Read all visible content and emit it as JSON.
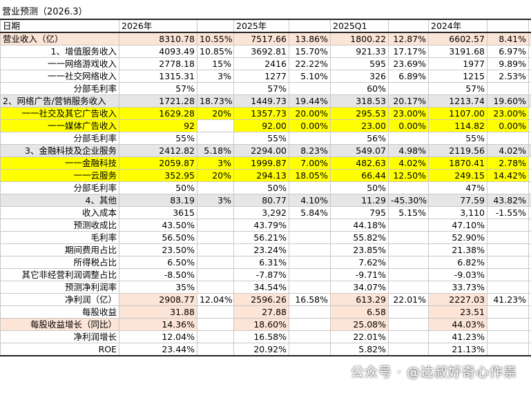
{
  "header": {
    "title": "营业预测（2026.3）"
  },
  "table": {
    "header": [
      "日期",
      "2026年",
      null,
      "2025年",
      null,
      "2025Q1",
      null,
      "2024年",
      null
    ],
    "rows": [
      [
        "营业收入（亿）",
        "8310.78",
        "10.55%",
        "7517.66",
        "13.86%",
        "1800.22",
        "12.87%",
        "6602.57",
        "8.41%"
      ],
      [
        "1、增值服务收入",
        "4093.49",
        "10.85%",
        "3692.81",
        "15.70%",
        "921.33",
        "17.17%",
        "3191.68",
        "6.97%"
      ],
      [
        "一一网络游戏收入",
        "2778.18",
        "15%",
        "2416",
        "22.22%",
        "595",
        "23.69%",
        "1977",
        "9.89%"
      ],
      [
        "一一社交网络收入",
        "1315.31",
        "3%",
        "1277",
        "5.10%",
        "326",
        "6.89%",
        "1215",
        "2.53%"
      ],
      [
        "分部毛利率",
        "57%",
        null,
        "57%",
        null,
        "60%",
        null,
        "57%",
        null
      ],
      [
        "2、网络广告/营销服务收入",
        "1721.28",
        "18.73%",
        "1449.73",
        "19.44%",
        "318.53",
        "20.17%",
        "1213.74",
        "19.60%"
      ],
      [
        "一一社交及其它广告收入",
        "1629.28",
        "20%",
        "1357.73",
        "20.00%",
        "295.53",
        "23.00%",
        "1107.00",
        "23.00%"
      ],
      [
        "一一媒体广告收入",
        "92",
        null,
        "92.00",
        "0.00%",
        "23.00",
        "0.00%",
        "114.82",
        "0.00%"
      ],
      [
        "分部毛利率",
        "55%",
        null,
        "55%",
        null,
        "56%",
        null,
        "55%",
        null
      ],
      [
        "3、金融科技及企业服务",
        "2412.82",
        "5.18%",
        "2294.00",
        "8.23%",
        "549.07",
        "4.98%",
        "2119.56",
        "4.02%"
      ],
      [
        "一一金融科技",
        "2059.87",
        "3%",
        "1999.87",
        "7.00%",
        "482.63",
        "4.02%",
        "1870.41",
        "2.78%"
      ],
      [
        "一一云服务",
        "352.95",
        "20%",
        "294.13",
        "18.05%",
        "66.44",
        "12.50%",
        "249.15",
        "14.42%"
      ],
      [
        "分部毛利率",
        "50%",
        null,
        "50%",
        null,
        "50%",
        null,
        "47%",
        null
      ],
      [
        "4、其他",
        "83.19",
        "3%",
        "80.77",
        "4.10%",
        "11.29",
        "-45.30%",
        "77.59",
        "43.82%"
      ],
      [
        "收入成本",
        "3615",
        null,
        "3,292",
        "5.84%",
        "795",
        "5.15%",
        "3,110",
        "-1.55%"
      ],
      [
        "预测收成比",
        "43.50%",
        null,
        "43.79%",
        null,
        "44.18%",
        null,
        "47.10%",
        null
      ],
      [
        "毛利率",
        "56.50%",
        null,
        "56.21%",
        null,
        "55.82%",
        null,
        "52.90%",
        null
      ],
      [
        "期间费用占比",
        "23.50%",
        null,
        "23.24%",
        null,
        "23.85%",
        null,
        "21.38%",
        null
      ],
      [
        "所得税占比",
        "6.50%",
        null,
        "6.31%",
        null,
        "7.62%",
        null,
        "6.82%",
        null
      ],
      [
        "其它非经营利润调整占比",
        "-8.50%",
        null,
        "-7.87%",
        null,
        "-9.71%",
        null,
        "-9.03%",
        null
      ],
      [
        "预测净利润率",
        "35%",
        null,
        "34.54%",
        null,
        "34.07%",
        null,
        "33.73%",
        null
      ],
      [
        "净利润（亿）",
        "2908.77",
        "12.04%",
        "2596.26",
        "16.58%",
        "613.29",
        "22.01%",
        "2227.03",
        "41.23%"
      ],
      [
        "每股收益",
        "31.88",
        null,
        "27.88",
        null,
        "6.58",
        null,
        "23.51",
        null
      ],
      [
        "每股收益增长（同比）",
        "14.36%",
        null,
        "18.60%",
        null,
        "25.08%",
        null,
        "44.03%",
        null
      ],
      [
        "净利润增长",
        "12.04%",
        null,
        "16.58%",
        null,
        "22.01%",
        null,
        "41.23%",
        null
      ],
      [
        "ROE",
        "23.44%",
        null,
        "20.92%",
        null,
        "5.82%",
        null,
        "21.13%",
        null
      ]
    ]
  },
  "watermark": "公众号 · @达叔好奇心作祟"
}
